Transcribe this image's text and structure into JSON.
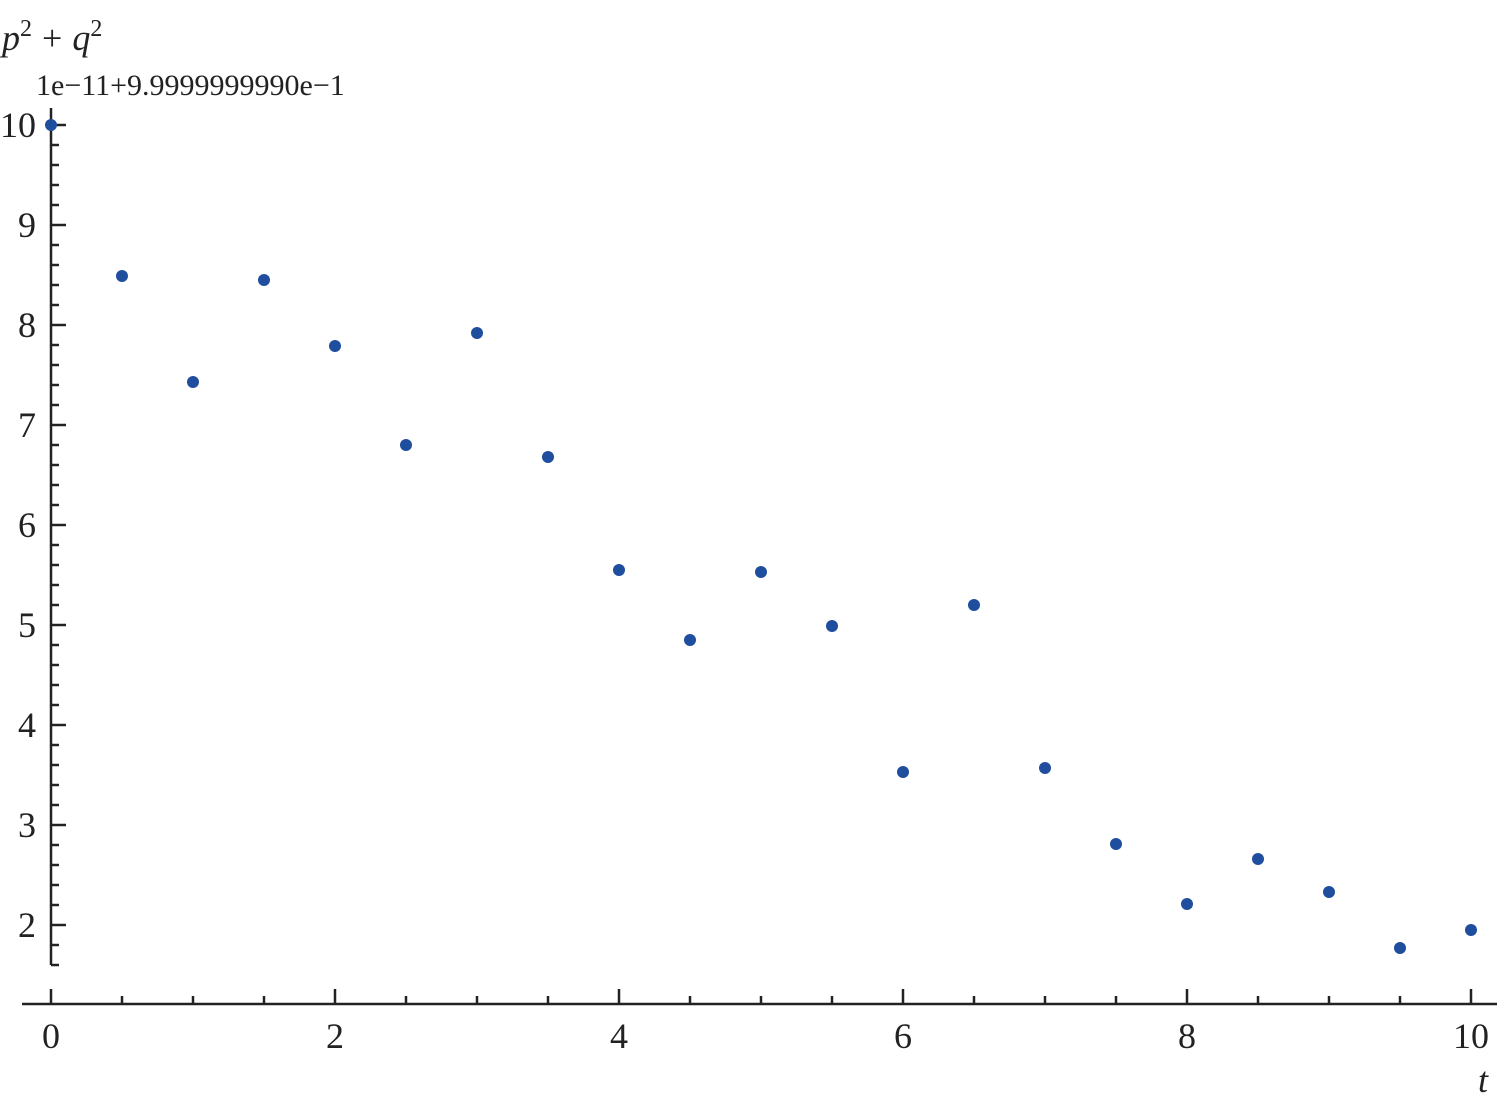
{
  "chart_data": {
    "type": "scatter",
    "title": "",
    "xlabel": "t",
    "ylabel": "p² + q²",
    "ylabel_parts": {
      "p": "p",
      "q": "q",
      "exp": "2",
      "plus": "+"
    },
    "y_offset_label": "1e−11+9.9999999990e−1",
    "xlim": [
      -0.2,
      10.2
    ],
    "ylim": [
      1.21,
      10.2
    ],
    "x_ticks": [
      0,
      2,
      4,
      6,
      8,
      10
    ],
    "y_ticks": [
      2,
      3,
      4,
      5,
      6,
      7,
      8,
      9,
      10
    ],
    "grid": false,
    "marker_color": "#1f4e9e",
    "points": [
      {
        "x": 0,
        "y": 10.0
      },
      {
        "x": 0.5,
        "y": 8.49
      },
      {
        "x": 1,
        "y": 7.43
      },
      {
        "x": 1.5,
        "y": 8.45
      },
      {
        "x": 2,
        "y": 7.79
      },
      {
        "x": 2.5,
        "y": 6.8
      },
      {
        "x": 3,
        "y": 7.92
      },
      {
        "x": 3.5,
        "y": 6.68
      },
      {
        "x": 4,
        "y": 5.55
      },
      {
        "x": 4.5,
        "y": 4.85
      },
      {
        "x": 5,
        "y": 5.53
      },
      {
        "x": 5.5,
        "y": 4.99
      },
      {
        "x": 6,
        "y": 3.53
      },
      {
        "x": 6.5,
        "y": 5.2
      },
      {
        "x": 7,
        "y": 3.57
      },
      {
        "x": 7.5,
        "y": 2.81
      },
      {
        "x": 8,
        "y": 2.21
      },
      {
        "x": 8.5,
        "y": 2.66
      },
      {
        "x": 9,
        "y": 2.33
      },
      {
        "x": 9.5,
        "y": 1.77
      },
      {
        "x": 10,
        "y": 1.95
      }
    ]
  }
}
